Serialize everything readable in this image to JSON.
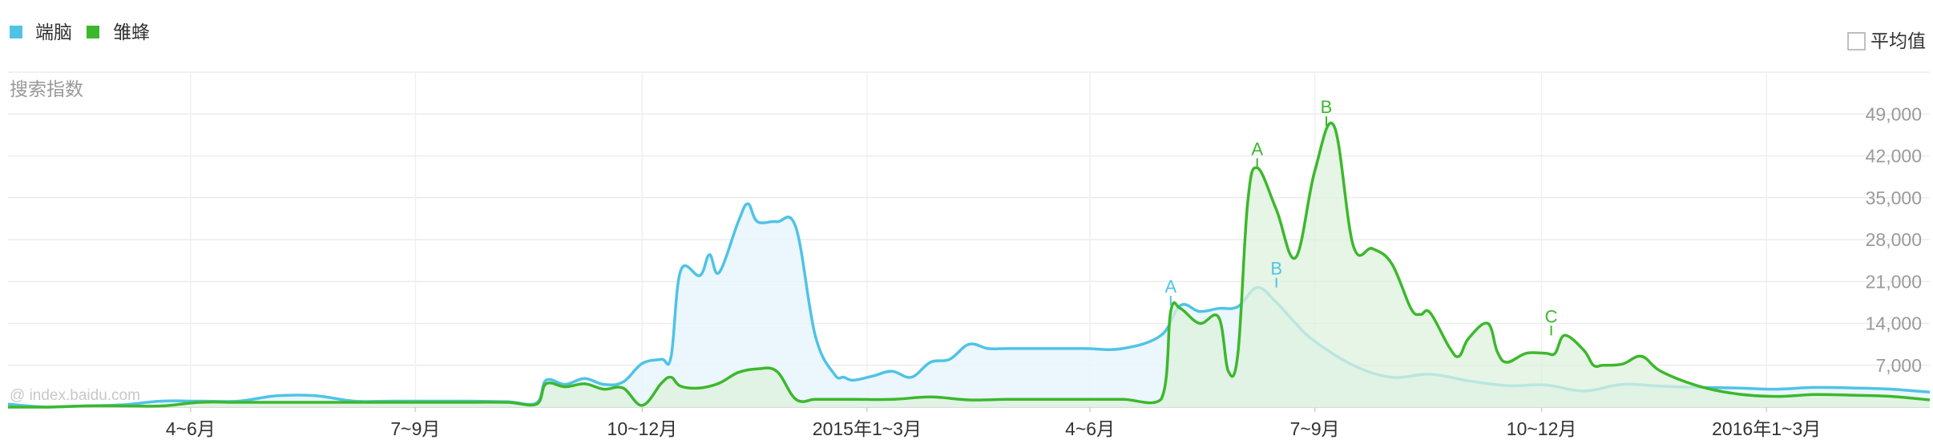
{
  "chart_data": {
    "type": "area",
    "title": "",
    "ylabel": "搜索指数",
    "ylim": [
      0,
      56000
    ],
    "yticks": [
      7000,
      14000,
      21000,
      28000,
      35000,
      42000,
      49000
    ],
    "ytick_labels": [
      "7,000",
      "14,000",
      "21,000",
      "28,000",
      "35,000",
      "42,000",
      "49,000"
    ],
    "xtick_labels": [
      "4~6月",
      "7~9月",
      "10~12月",
      "2015年1~3月",
      "4~6月",
      "7~9月",
      "10~12月",
      "2016年1~3月"
    ],
    "xlim": [
      0,
      100
    ],
    "xticks": [
      9.5,
      21.2,
      33.0,
      44.7,
      56.3,
      68.0,
      79.8,
      91.5
    ],
    "grid": true,
    "legend_position": "top-left",
    "series": [
      {
        "name": "端脑",
        "color": "#4fc3e6",
        "fill": "#e8f6fc",
        "x": [
          0,
          2,
          4,
          6,
          8,
          10,
          12,
          14,
          16,
          18,
          20,
          22,
          24,
          26,
          27.5,
          28,
          29,
          30,
          31,
          32,
          33,
          34,
          34.5,
          35,
          36,
          36.5,
          37,
          38,
          38.5,
          39,
          40,
          41,
          42,
          43,
          43.5,
          44,
          45,
          46,
          47,
          48,
          49,
          50,
          51,
          52,
          54,
          56,
          58,
          60,
          61,
          62,
          63,
          64,
          65,
          66,
          67,
          68,
          70,
          72,
          74,
          76,
          78,
          80,
          82,
          84,
          86,
          88,
          90,
          92,
          94,
          96,
          98,
          100
        ],
        "y": [
          500,
          0,
          200,
          400,
          1000,
          1000,
          1000,
          1900,
          1900,
          1000,
          1000,
          1000,
          1000,
          900,
          700,
          4500,
          3800,
          4800,
          3800,
          4200,
          7300,
          8000,
          8400,
          22800,
          22000,
          25500,
          22500,
          31000,
          34000,
          31000,
          31000,
          30000,
          12000,
          5500,
          5000,
          4500,
          5200,
          6000,
          5000,
          7500,
          8000,
          10500,
          9800,
          9800,
          9800,
          9800,
          9800,
          12000,
          17000,
          16000,
          16500,
          16800,
          20000,
          17500,
          14000,
          11000,
          7000,
          5000,
          5500,
          4400,
          3600,
          3700,
          2700,
          3800,
          3500,
          3300,
          3200,
          3000,
          3300,
          3200,
          3000,
          2500
        ]
      },
      {
        "name": "雏蜂",
        "color": "#3cb82c",
        "fill": "#def2de",
        "x": [
          0,
          2,
          4,
          6,
          8,
          10,
          12,
          14,
          16,
          18,
          20,
          22,
          24,
          26,
          27.5,
          28,
          29,
          30,
          31,
          32,
          33,
          34,
          34.5,
          35,
          36,
          37,
          38,
          39,
          40,
          41,
          42,
          43,
          44,
          46,
          48,
          50,
          52,
          54,
          56,
          58,
          60,
          60.5,
          61,
          62,
          63,
          63.5,
          64,
          64.5,
          65,
          66,
          67,
          68,
          69,
          70,
          71,
          72,
          73,
          73.5,
          74,
          75,
          75.5,
          76,
          77,
          77.5,
          78,
          79,
          80,
          80.5,
          81,
          82,
          82.5,
          83,
          84,
          85,
          86,
          88,
          90,
          92,
          94,
          96,
          98,
          100
        ],
        "y": [
          0,
          0,
          200,
          200,
          200,
          800,
          800,
          800,
          800,
          800,
          800,
          800,
          800,
          800,
          500,
          3900,
          3400,
          3900,
          3000,
          3200,
          300,
          4000,
          5000,
          3500,
          3200,
          4000,
          5800,
          6400,
          6000,
          1300,
          1300,
          1300,
          1300,
          1300,
          1700,
          1200,
          1300,
          1300,
          1300,
          1300,
          1300,
          16000,
          16500,
          14000,
          15000,
          6000,
          9000,
          34000,
          40000,
          33000,
          25000,
          39500,
          47000,
          27000,
          26500,
          24000,
          16500,
          15500,
          15800,
          10000,
          8500,
          11500,
          14000,
          9200,
          7500,
          9000,
          9000,
          9000,
          12000,
          9500,
          7000,
          7000,
          7200,
          8500,
          6000,
          3500,
          2200,
          1800,
          2100,
          2000,
          1800,
          1200
        ]
      }
    ],
    "annotations": [
      {
        "series": "端脑",
        "label": "A",
        "x": 60.5,
        "y": 17000
      },
      {
        "series": "端脑",
        "label": "B",
        "x": 66.0,
        "y": 20000
      },
      {
        "series": "雏蜂",
        "label": "A",
        "x": 65.0,
        "y": 40000
      },
      {
        "series": "雏蜂",
        "label": "B",
        "x": 68.6,
        "y": 47000
      },
      {
        "series": "雏蜂",
        "label": "C",
        "x": 80.3,
        "y": 12000
      }
    ]
  },
  "controls": {
    "average_label": "平均值",
    "average_checked": false
  },
  "watermark": "@ index.baidu.com"
}
